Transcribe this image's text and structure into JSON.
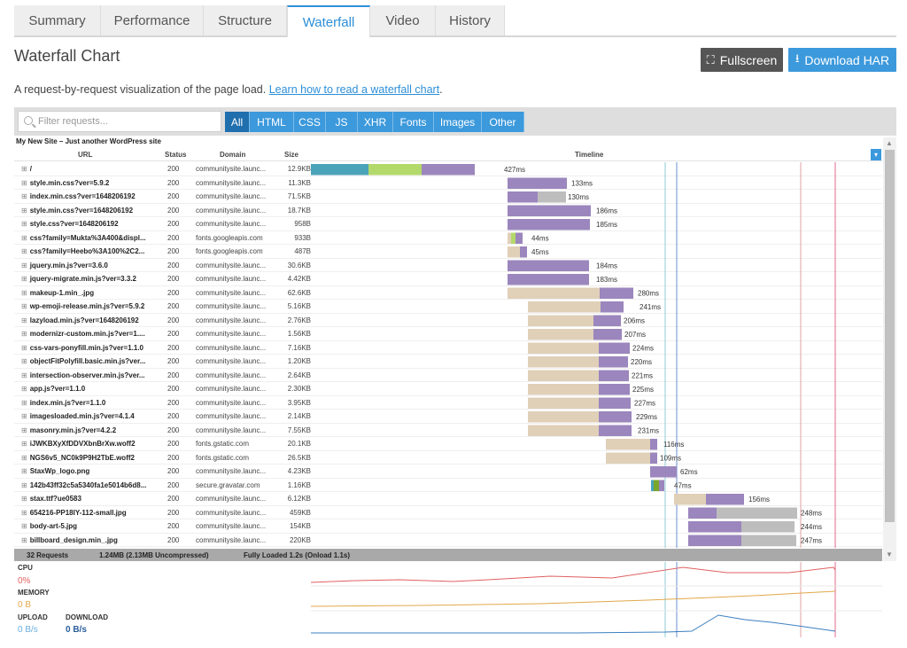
{
  "tabs": [
    "Summary",
    "Performance",
    "Structure",
    "Waterfall",
    "Video",
    "History"
  ],
  "active_tab": "Waterfall",
  "title": "Waterfall Chart",
  "buttons": {
    "fullscreen": "Fullscreen",
    "download": "Download HAR"
  },
  "subtitle": {
    "text": "A request-by-request visualization of the page load.",
    "link": "Learn how to read a waterfall chart",
    "suffix": "."
  },
  "filter": {
    "placeholder": "Filter requests...",
    "buttons": [
      "All",
      "HTML",
      "CSS",
      "JS",
      "XHR",
      "Fonts",
      "Images",
      "Other"
    ],
    "active": "All"
  },
  "site_title": "My New Site – Just another WordPress site",
  "columns": {
    "url": "URL",
    "status": "Status",
    "domain": "Domain",
    "size": "Size",
    "timeline": "Timeline"
  },
  "requests": [
    {
      "url": "/",
      "status": "200",
      "domain": "communitysite.launc...",
      "size": "12.9KB",
      "time": "427ms"
    },
    {
      "url": "style.min.css?ver=5.9.2",
      "status": "200",
      "domain": "communitysite.launc...",
      "size": "11.3KB",
      "time": "133ms"
    },
    {
      "url": "index.min.css?ver=1648206192",
      "status": "200",
      "domain": "communitysite.launc...",
      "size": "71.5KB",
      "time": "130ms"
    },
    {
      "url": "style.min.css?ver=1648206192",
      "status": "200",
      "domain": "communitysite.launc...",
      "size": "18.7KB",
      "time": "186ms"
    },
    {
      "url": "style.css?ver=1648206192",
      "status": "200",
      "domain": "communitysite.launc...",
      "size": "958B",
      "time": "185ms"
    },
    {
      "url": "css?family=Mukta%3A400&displ...",
      "status": "200",
      "domain": "fonts.googleapis.com",
      "size": "933B",
      "time": "44ms"
    },
    {
      "url": "css?family=Heebo%3A100%2C2...",
      "status": "200",
      "domain": "fonts.googleapis.com",
      "size": "487B",
      "time": "45ms"
    },
    {
      "url": "jquery.min.js?ver=3.6.0",
      "status": "200",
      "domain": "communitysite.launc...",
      "size": "30.6KB",
      "time": "184ms"
    },
    {
      "url": "jquery-migrate.min.js?ver=3.3.2",
      "status": "200",
      "domain": "communitysite.launc...",
      "size": "4.42KB",
      "time": "183ms"
    },
    {
      "url": "makeup-1.min_.jpg",
      "status": "200",
      "domain": "communitysite.launc...",
      "size": "62.6KB",
      "time": "280ms"
    },
    {
      "url": "wp-emoji-release.min.js?ver=5.9.2",
      "status": "200",
      "domain": "communitysite.launc...",
      "size": "5.16KB",
      "time": "241ms"
    },
    {
      "url": "lazyload.min.js?ver=1648206192",
      "status": "200",
      "domain": "communitysite.launc...",
      "size": "2.76KB",
      "time": "206ms"
    },
    {
      "url": "modernizr-custom.min.js?ver=1....",
      "status": "200",
      "domain": "communitysite.launc...",
      "size": "1.56KB",
      "time": "207ms"
    },
    {
      "url": "css-vars-ponyfill.min.js?ver=1.1.0",
      "status": "200",
      "domain": "communitysite.launc...",
      "size": "7.16KB",
      "time": "224ms"
    },
    {
      "url": "objectFitPolyfill.basic.min.js?ver...",
      "status": "200",
      "domain": "communitysite.launc...",
      "size": "1.20KB",
      "time": "220ms"
    },
    {
      "url": "intersection-observer.min.js?ver...",
      "status": "200",
      "domain": "communitysite.launc...",
      "size": "2.64KB",
      "time": "221ms"
    },
    {
      "url": "app.js?ver=1.1.0",
      "status": "200",
      "domain": "communitysite.launc...",
      "size": "2.30KB",
      "time": "225ms"
    },
    {
      "url": "index.min.js?ver=1.1.0",
      "status": "200",
      "domain": "communitysite.launc...",
      "size": "3.95KB",
      "time": "227ms"
    },
    {
      "url": "imagesloaded.min.js?ver=4.1.4",
      "status": "200",
      "domain": "communitysite.launc...",
      "size": "2.14KB",
      "time": "229ms"
    },
    {
      "url": "masonry.min.js?ver=4.2.2",
      "status": "200",
      "domain": "communitysite.launc...",
      "size": "7.55KB",
      "time": "231ms"
    },
    {
      "url": "iJWKBXyXfDDVXbnBrXw.woff2",
      "status": "200",
      "domain": "fonts.gstatic.com",
      "size": "20.1KB",
      "time": "116ms"
    },
    {
      "url": "NGS6v5_NC0k9P9H2TbE.woff2",
      "status": "200",
      "domain": "fonts.gstatic.com",
      "size": "26.5KB",
      "time": "109ms"
    },
    {
      "url": "StaxWp_logo.png",
      "status": "200",
      "domain": "communitysite.launc...",
      "size": "4.23KB",
      "time": "62ms"
    },
    {
      "url": "142b43ff32c5a5340fa1e5014b6d8...",
      "status": "200",
      "domain": "secure.gravatar.com",
      "size": "1.16KB",
      "time": "47ms"
    },
    {
      "url": "stax.ttf?ue0583",
      "status": "200",
      "domain": "communitysite.launc...",
      "size": "6.12KB",
      "time": "156ms"
    },
    {
      "url": "654216-PP18IY-112-small.jpg",
      "status": "200",
      "domain": "communitysite.launc...",
      "size": "459KB",
      "time": "248ms"
    },
    {
      "url": "body-art-5.jpg",
      "status": "200",
      "domain": "communitysite.launc...",
      "size": "154KB",
      "time": "244ms"
    },
    {
      "url": "billboard_design.min_.jpg",
      "status": "200",
      "domain": "communitysite.launc...",
      "size": "220KB",
      "time": "247ms"
    }
  ],
  "summary": {
    "requests": "32 Requests",
    "size": "1.24MB  (2.13MB Uncompressed)",
    "loaded": "Fully Loaded 1.2s  (Onload 1.1s)"
  },
  "metrics": {
    "cpu_label": "CPU",
    "cpu_value": "0%",
    "memory_label": "MEMORY",
    "memory_value": "0 B",
    "upload_label": "UPLOAD",
    "upload_value": "0 B/s",
    "download_label": "DOWNLOAD",
    "download_value": "0 B/s"
  },
  "colors": {
    "blocked": "#e0d0b8",
    "dns": "#4aa3b8",
    "connect": "#b3d96b",
    "ssl": "#7aa62a",
    "wait": "#9b86bd",
    "receive": "#bdbdbd",
    "accent": "#3c99dc",
    "cpu": "#e06060",
    "memory": "#e0a84a",
    "network": "#3c7fc0"
  }
}
